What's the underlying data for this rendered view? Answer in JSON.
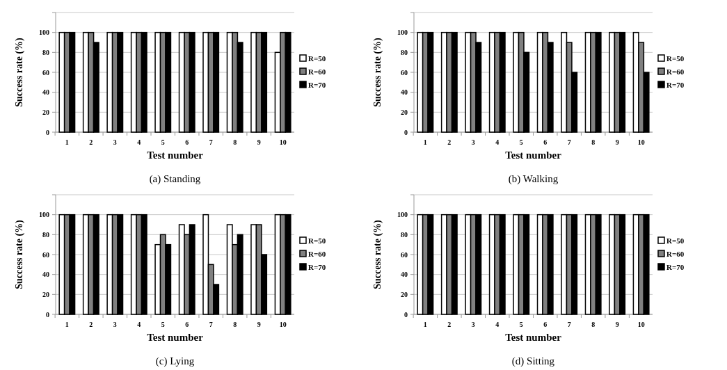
{
  "chart_data": [
    {
      "type": "bar",
      "title": "(a)  Standing",
      "xlabel": "Test number",
      "ylabel": "Success rate (%)",
      "categories": [
        "1",
        "2",
        "3",
        "4",
        "5",
        "6",
        "7",
        "8",
        "9",
        "10"
      ],
      "series": [
        {
          "name": "R=50",
          "color": "#ffffff",
          "values": [
            100,
            100,
            100,
            100,
            100,
            100,
            100,
            100,
            100,
            80
          ]
        },
        {
          "name": "R=60",
          "color": "#808080",
          "values": [
            100,
            100,
            100,
            100,
            100,
            100,
            100,
            100,
            100,
            100
          ]
        },
        {
          "name": "R=70",
          "color": "#000000",
          "values": [
            100,
            90,
            100,
            100,
            100,
            100,
            100,
            90,
            100,
            100
          ]
        }
      ],
      "ylim": [
        0,
        120
      ],
      "yticks": [
        0,
        20,
        40,
        60,
        80,
        100
      ],
      "grid": "y",
      "legend": "right"
    },
    {
      "type": "bar",
      "title": "(b)  Walking",
      "xlabel": "Test number",
      "ylabel": "Success rate (%)",
      "categories": [
        "1",
        "2",
        "3",
        "4",
        "5",
        "6",
        "7",
        "8",
        "9",
        "10"
      ],
      "series": [
        {
          "name": "R=50",
          "color": "#ffffff",
          "values": [
            100,
            100,
            100,
            100,
            100,
            100,
            100,
            100,
            100,
            100
          ]
        },
        {
          "name": "R=60",
          "color": "#808080",
          "values": [
            100,
            100,
            100,
            100,
            100,
            100,
            90,
            100,
            100,
            90
          ]
        },
        {
          "name": "R=70",
          "color": "#000000",
          "values": [
            100,
            100,
            90,
            100,
            80,
            90,
            60,
            100,
            100,
            60
          ]
        }
      ],
      "ylim": [
        0,
        120
      ],
      "yticks": [
        0,
        20,
        40,
        60,
        80,
        100
      ],
      "grid": "y",
      "legend": "right"
    },
    {
      "type": "bar",
      "title": "(c)  Lying",
      "xlabel": "Test number",
      "ylabel": "Success rate (%)",
      "categories": [
        "1",
        "2",
        "3",
        "4",
        "5",
        "6",
        "7",
        "8",
        "9",
        "10"
      ],
      "series": [
        {
          "name": "R=50",
          "color": "#ffffff",
          "values": [
            100,
            100,
            100,
            100,
            70,
            90,
            100,
            90,
            90,
            100
          ]
        },
        {
          "name": "R=60",
          "color": "#808080",
          "values": [
            100,
            100,
            100,
            100,
            80,
            80,
            50,
            70,
            90,
            100
          ]
        },
        {
          "name": "R=70",
          "color": "#000000",
          "values": [
            100,
            100,
            100,
            100,
            70,
            90,
            30,
            80,
            60,
            100
          ]
        }
      ],
      "ylim": [
        0,
        120
      ],
      "yticks": [
        0,
        20,
        40,
        60,
        80,
        100
      ],
      "grid": "y",
      "legend": "right"
    },
    {
      "type": "bar",
      "title": "(d)  Sitting",
      "xlabel": "Test number",
      "ylabel": "Success rate (%)",
      "categories": [
        "1",
        "2",
        "3",
        "4",
        "5",
        "6",
        "7",
        "8",
        "9",
        "10"
      ],
      "series": [
        {
          "name": "R=50",
          "color": "#ffffff",
          "values": [
            100,
            100,
            100,
            100,
            100,
            100,
            100,
            100,
            100,
            100
          ]
        },
        {
          "name": "R=60",
          "color": "#808080",
          "values": [
            100,
            100,
            100,
            100,
            100,
            100,
            100,
            100,
            100,
            100
          ]
        },
        {
          "name": "R=70",
          "color": "#000000",
          "values": [
            100,
            100,
            100,
            100,
            100,
            100,
            100,
            100,
            100,
            100
          ]
        }
      ],
      "ylim": [
        0,
        120
      ],
      "yticks": [
        0,
        20,
        40,
        60,
        80,
        100
      ],
      "grid": "y",
      "legend": "right"
    }
  ]
}
